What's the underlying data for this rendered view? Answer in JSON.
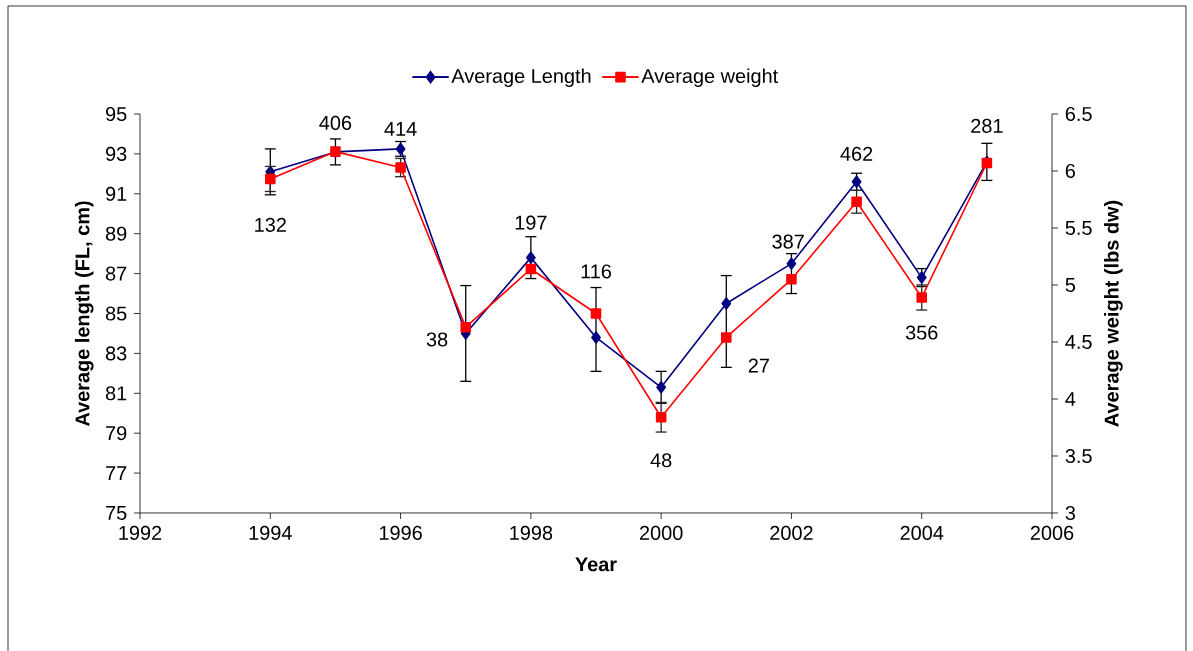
{
  "chart_data": {
    "type": "line",
    "xlabel": "Year",
    "ylabel": "Average length (FL, cm)",
    "y2label": "Average weight (lbs dw)",
    "x": [
      1994,
      1995,
      1996,
      1997,
      1998,
      1999,
      2000,
      2001,
      2002,
      2003,
      2004,
      2005
    ],
    "series": [
      {
        "name": "Average Length",
        "color": "#000080",
        "marker": "diamond",
        "values": [
          92.1,
          93.1,
          93.25,
          84.0,
          87.8,
          83.8,
          81.3,
          85.5,
          87.5,
          91.6,
          86.8,
          92.6
        ],
        "errors": [
          1.15,
          0.65,
          0.37,
          2.4,
          1.05,
          [
            82.1,
            86.3
          ],
          0.8,
          [
            82.3,
            86.9
          ],
          [
            86.0,
            88.0
          ],
          0.43,
          0.45,
          0.93
        ]
      },
      {
        "name": "Average weight",
        "color": "#ff0000",
        "marker": "square",
        "axis": "y2",
        "values": [
          5.93,
          6.17,
          6.03,
          4.63,
          5.14,
          4.75,
          3.84,
          4.54,
          5.05,
          5.73,
          4.89,
          6.07
        ],
        "errors": [
          0.11,
          null,
          0.08,
          null,
          null,
          null,
          0.13,
          null,
          null,
          0.1,
          0.11,
          null
        ]
      }
    ],
    "xlim": [
      1992,
      2006
    ],
    "xticks": [
      1992,
      1994,
      1996,
      1998,
      2000,
      2002,
      2004,
      2006
    ],
    "ylim": [
      75,
      95
    ],
    "yticks": [
      75,
      77,
      79,
      81,
      83,
      85,
      87,
      89,
      91,
      93,
      95
    ],
    "y2lim": [
      3,
      6.5
    ],
    "y2ticks": [
      3,
      3.5,
      4,
      4.5,
      5,
      5.5,
      6,
      6.5
    ],
    "legend": "top",
    "grid": false,
    "line_style": "solid",
    "annotations": [
      "132",
      "406",
      "414",
      "38",
      "197",
      "116",
      "48",
      "27",
      "387",
      "462",
      "356",
      "281"
    ]
  }
}
